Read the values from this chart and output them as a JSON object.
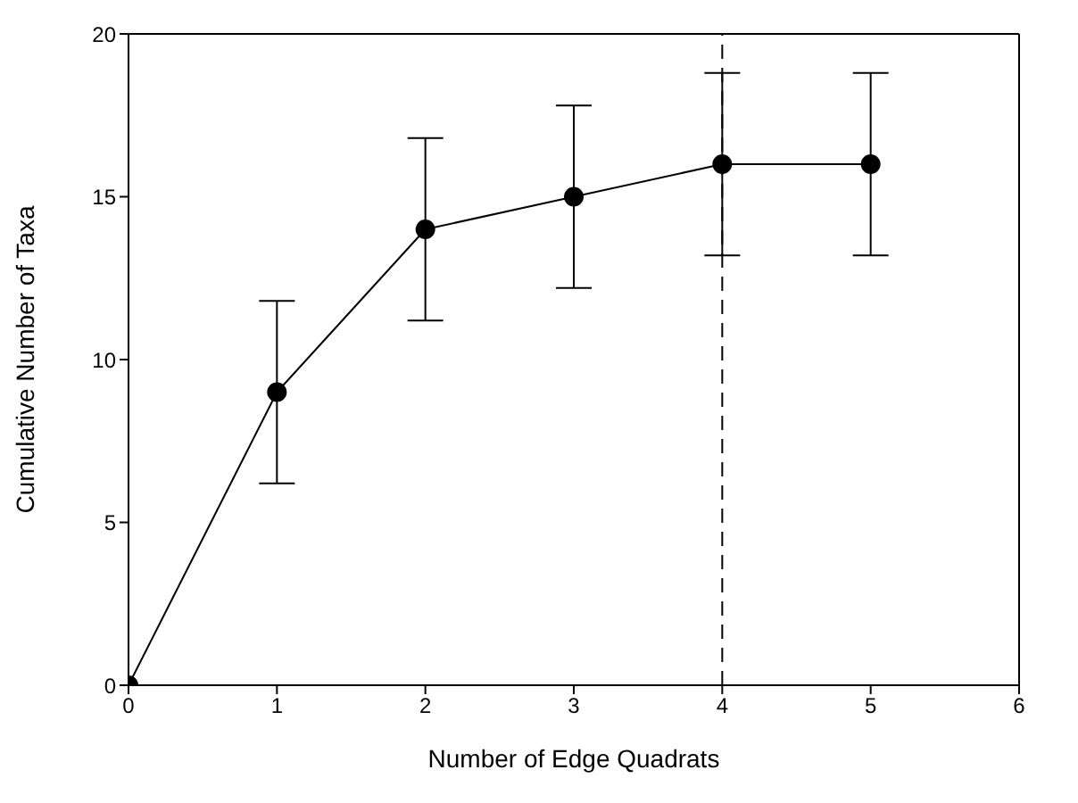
{
  "chart_data": {
    "type": "line",
    "xlabel": "Number of Edge Quadrats",
    "ylabel": "Cumulative Number of Taxa",
    "x": [
      0,
      1,
      2,
      3,
      4,
      5
    ],
    "series": [
      {
        "color": "#000000",
        "values": [
          0,
          9,
          14,
          15,
          16,
          16
        ],
        "errors": [
          null,
          2.8,
          2.8,
          2.8,
          2.8,
          2.8
        ]
      }
    ],
    "marker": "circle",
    "line_style": "solid",
    "xlim": [
      0,
      6
    ],
    "xticks": [
      0,
      1,
      2,
      3,
      4,
      5,
      6
    ],
    "ylim": [
      0,
      20
    ],
    "yticks": [
      0,
      5,
      10,
      15,
      20
    ],
    "ref_lines": [
      {
        "axis": "x",
        "value": 4,
        "color": "#000000",
        "line_style": "dashed"
      }
    ],
    "grid": false,
    "legend": false
  }
}
